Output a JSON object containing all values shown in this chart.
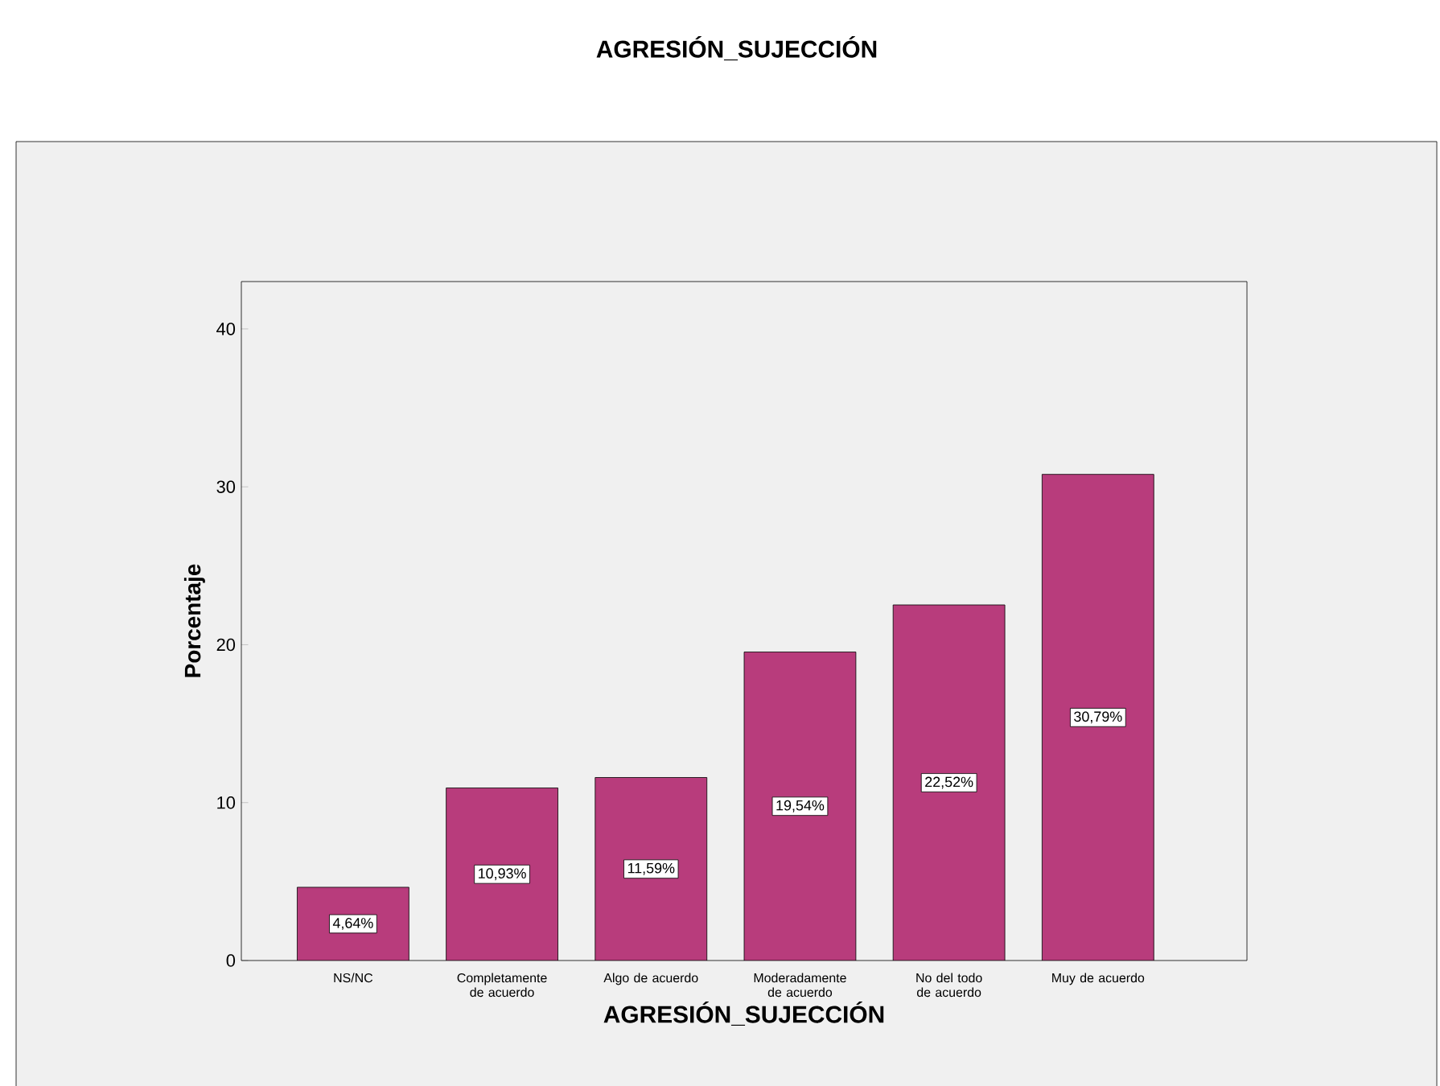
{
  "chart_data": {
    "type": "bar",
    "title": "AGRESIÓN_SUJECCIÓN",
    "xlabel": "AGRESIÓN_SUJECCIÓN",
    "ylabel": "Porcentaje",
    "categories": [
      "NS/NC",
      "Completamente de acuerdo",
      "Algo de acuerdo",
      "Moderadamente de acuerdo",
      "No del todo de acuerdo",
      "Muy de acuerdo"
    ],
    "values": [
      4.64,
      10.93,
      11.59,
      19.54,
      22.52,
      30.79
    ],
    "value_labels": [
      "4,64%",
      "10,93%",
      "11,59%",
      "19,54%",
      "22,52%",
      "30,79%"
    ],
    "color": "#b83c7c",
    "ylim": [
      0,
      43
    ],
    "yticks": [
      0,
      10,
      20,
      30,
      40
    ]
  }
}
